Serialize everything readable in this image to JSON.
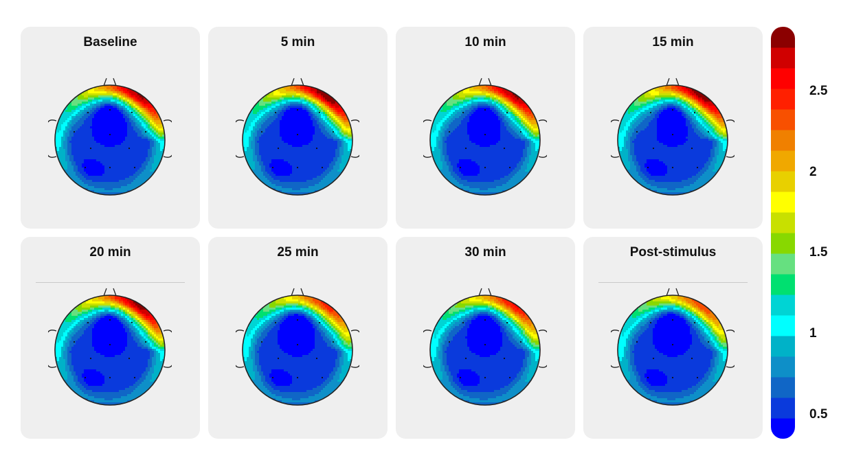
{
  "chart_data": {
    "type": "heatmap",
    "panels": [
      {
        "title": "Baseline",
        "frontal_peak": 2.55,
        "frontal_band_width": 0.55
      },
      {
        "title": "5 min",
        "frontal_peak": 2.7,
        "frontal_band_width": 0.6
      },
      {
        "title": "10 min",
        "frontal_peak": 2.55,
        "frontal_band_width": 0.7
      },
      {
        "title": "15 min",
        "frontal_peak": 2.65,
        "frontal_band_width": 0.8
      },
      {
        "title": "20 min",
        "frontal_peak": 2.6,
        "frontal_band_width": 0.55
      },
      {
        "title": "25 min",
        "frontal_peak": 2.15,
        "frontal_band_width": 0.5
      },
      {
        "title": "30 min",
        "frontal_peak": 2.25,
        "frontal_band_width": 0.6
      },
      {
        "title": "Post-stimulus",
        "frontal_peak": 2.05,
        "frontal_band_width": 0.45
      }
    ],
    "colorbar": {
      "range": [
        0.35,
        2.9
      ],
      "ticks": [
        {
          "value": 2.5,
          "label": "2.5"
        },
        {
          "value": 2,
          "label": "2"
        },
        {
          "value": 1.5,
          "label": "1.5"
        },
        {
          "value": 1,
          "label": "1"
        },
        {
          "value": 0.5,
          "label": "0.5"
        }
      ],
      "colors": [
        "#0000ff",
        "#0a3adc",
        "#1066c6",
        "#0e8fc8",
        "#00b2c8",
        "#00ffff",
        "#00d4d4",
        "#00e070",
        "#66e080",
        "#88d800",
        "#c8e000",
        "#ffff00",
        "#e8d000",
        "#f0a800",
        "#f08000",
        "#f85000",
        "#ff2000",
        "#ff0000",
        "#d00000",
        "#8b0000"
      ]
    }
  }
}
